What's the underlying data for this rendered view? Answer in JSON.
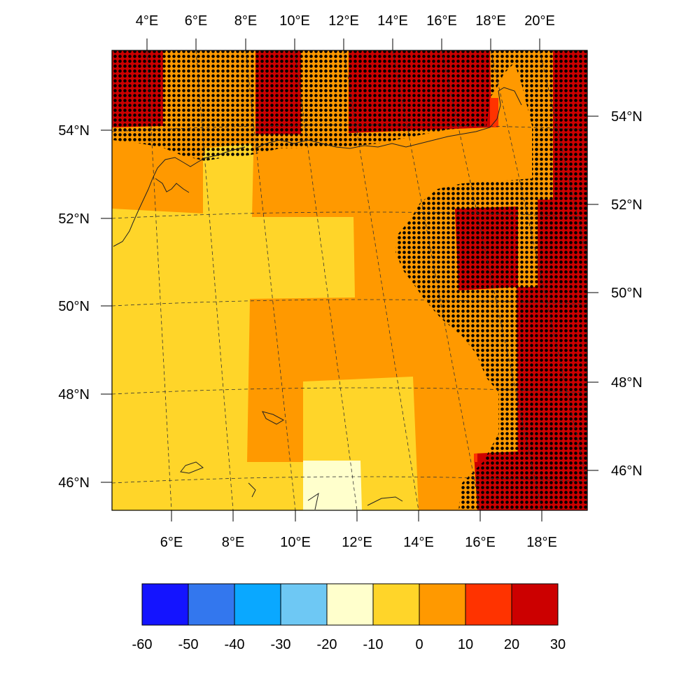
{
  "map": {
    "projection": "lambert-conformal (curved graticule)",
    "lon_range": [
      4,
      20
    ],
    "lat_range": [
      45.6,
      55.6
    ],
    "bottom_lon_labels": [
      "6°E",
      "8°E",
      "10°E",
      "12°E",
      "14°E",
      "16°E",
      "18°E"
    ],
    "top_lon_labels": [
      "4°E",
      "6°E",
      "8°E",
      "10°E",
      "12°E",
      "14°E",
      "16°E",
      "18°E",
      "20°E"
    ],
    "left_lat_labels": [
      "54°N",
      "52°N",
      "50°N",
      "48°N",
      "46°N"
    ],
    "right_lat_labels": [
      "54°N",
      "52°N",
      "50°N",
      "48°N",
      "46°N"
    ],
    "graticule": "dashed",
    "coastlines": true,
    "stippling": "black dots mark statistically significant regions (east and north)"
  },
  "colorbar": {
    "labels": [
      "-60",
      "-50",
      "-40",
      "-30",
      "-20",
      "-10",
      "0",
      "10",
      "20",
      "30"
    ],
    "colors": [
      "#1414ff",
      "#3377ee",
      "#0aa8ff",
      "#6ec8f4",
      "#ffffcc",
      "#ffd529",
      "#ff9900",
      "#ff3300",
      "#cc0000"
    ]
  },
  "colors": {
    "light": "#ffffcc",
    "yellow": "#ffd529",
    "orange": "#ff9900",
    "red": "#ff3300",
    "dark_red": "#cc0000"
  }
}
